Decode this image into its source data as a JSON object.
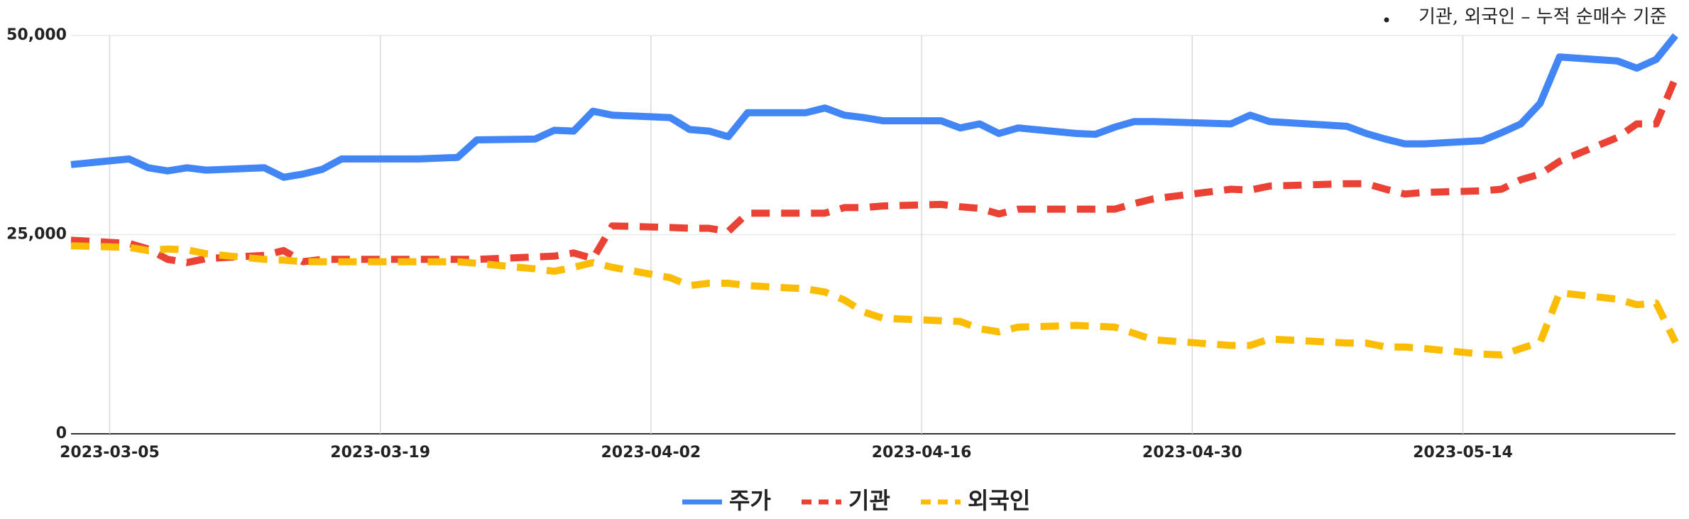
{
  "chart_data": {
    "type": "line",
    "annotation": "기관, 외국인 – 누적 순매수 기준",
    "x": [
      "2023-03-03",
      "2023-03-06",
      "2023-03-07",
      "2023-03-08",
      "2023-03-09",
      "2023-03-10",
      "2023-03-13",
      "2023-03-14",
      "2023-03-15",
      "2023-03-16",
      "2023-03-17",
      "2023-03-20",
      "2023-03-21",
      "2023-03-22",
      "2023-03-23",
      "2023-03-24",
      "2023-03-27",
      "2023-03-28",
      "2023-03-29",
      "2023-03-30",
      "2023-03-31",
      "2023-04-03",
      "2023-04-04",
      "2023-04-05",
      "2023-04-06",
      "2023-04-07",
      "2023-04-10",
      "2023-04-11",
      "2023-04-12",
      "2023-04-13",
      "2023-04-14",
      "2023-04-17",
      "2023-04-18",
      "2023-04-19",
      "2023-04-20",
      "2023-04-21",
      "2023-04-24",
      "2023-04-25",
      "2023-04-26",
      "2023-04-27",
      "2023-04-28",
      "2023-05-02",
      "2023-05-03",
      "2023-05-04",
      "2023-05-08",
      "2023-05-09",
      "2023-05-10",
      "2023-05-11",
      "2023-05-12",
      "2023-05-15",
      "2023-05-16",
      "2023-05-17",
      "2023-05-18",
      "2023-05-19",
      "2023-05-22",
      "2023-05-23",
      "2023-05-24",
      "2023-05-25"
    ],
    "series": [
      {
        "name": "주가",
        "color": "#4285f4",
        "dashed": false,
        "values": [
          33800,
          34500,
          33400,
          33000,
          33400,
          33100,
          33400,
          32200,
          32600,
          33200,
          34500,
          34500,
          34500,
          34600,
          34700,
          36900,
          37000,
          38100,
          38000,
          40500,
          40000,
          39700,
          38200,
          38000,
          37300,
          40300,
          40300,
          40900,
          40000,
          39700,
          39300,
          39300,
          38400,
          38900,
          37700,
          38400,
          37700,
          37600,
          38500,
          39200,
          39200,
          38900,
          40000,
          39200,
          38600,
          37700,
          37000,
          36400,
          36400,
          36800,
          37800,
          38900,
          41500,
          47300,
          46800,
          45900,
          47000,
          50000
        ]
      },
      {
        "name": "기관",
        "color": "#ea4335",
        "dashed": true,
        "values": [
          24300,
          23900,
          23200,
          21900,
          21500,
          22000,
          22400,
          23000,
          21600,
          21900,
          21900,
          21900,
          21900,
          21900,
          21900,
          21900,
          22200,
          22300,
          22700,
          22000,
          26100,
          25900,
          25800,
          25800,
          25400,
          27700,
          27700,
          27700,
          28400,
          28400,
          28600,
          28800,
          28500,
          28300,
          27600,
          28200,
          28200,
          28200,
          28200,
          28900,
          29500,
          30700,
          30600,
          31100,
          31400,
          31400,
          30700,
          30100,
          30300,
          30500,
          30700,
          31900,
          32600,
          34200,
          37200,
          38900,
          38900,
          44700
        ]
      },
      {
        "name": "외국인",
        "color": "#fbbc04",
        "dashed": true,
        "values": [
          23600,
          23400,
          23000,
          23200,
          23100,
          22600,
          21900,
          21800,
          21600,
          21600,
          21600,
          21600,
          21600,
          21600,
          21600,
          21400,
          20700,
          20400,
          20900,
          21500,
          20900,
          19600,
          18600,
          18900,
          18900,
          18600,
          18200,
          17800,
          16800,
          15300,
          14500,
          14200,
          14100,
          13200,
          12800,
          13400,
          13600,
          13500,
          13400,
          12600,
          11800,
          11100,
          11100,
          11900,
          11400,
          11400,
          10900,
          10900,
          10700,
          10000,
          9900,
          10700,
          11500,
          17700,
          16900,
          16200,
          16400,
          11500
        ]
      }
    ],
    "xlim": [
      "2023-03-03",
      "2023-05-25"
    ],
    "xticks": [
      "2023-03-05",
      "2023-03-19",
      "2023-04-02",
      "2023-04-16",
      "2023-04-30",
      "2023-05-14"
    ],
    "ylim": [
      0,
      50000
    ],
    "yticks": [
      0,
      {
        "value": 25000,
        "label": "25,000"
      },
      {
        "value": 50000,
        "label": "50,000"
      }
    ],
    "grid": true,
    "legend": "bottom"
  }
}
